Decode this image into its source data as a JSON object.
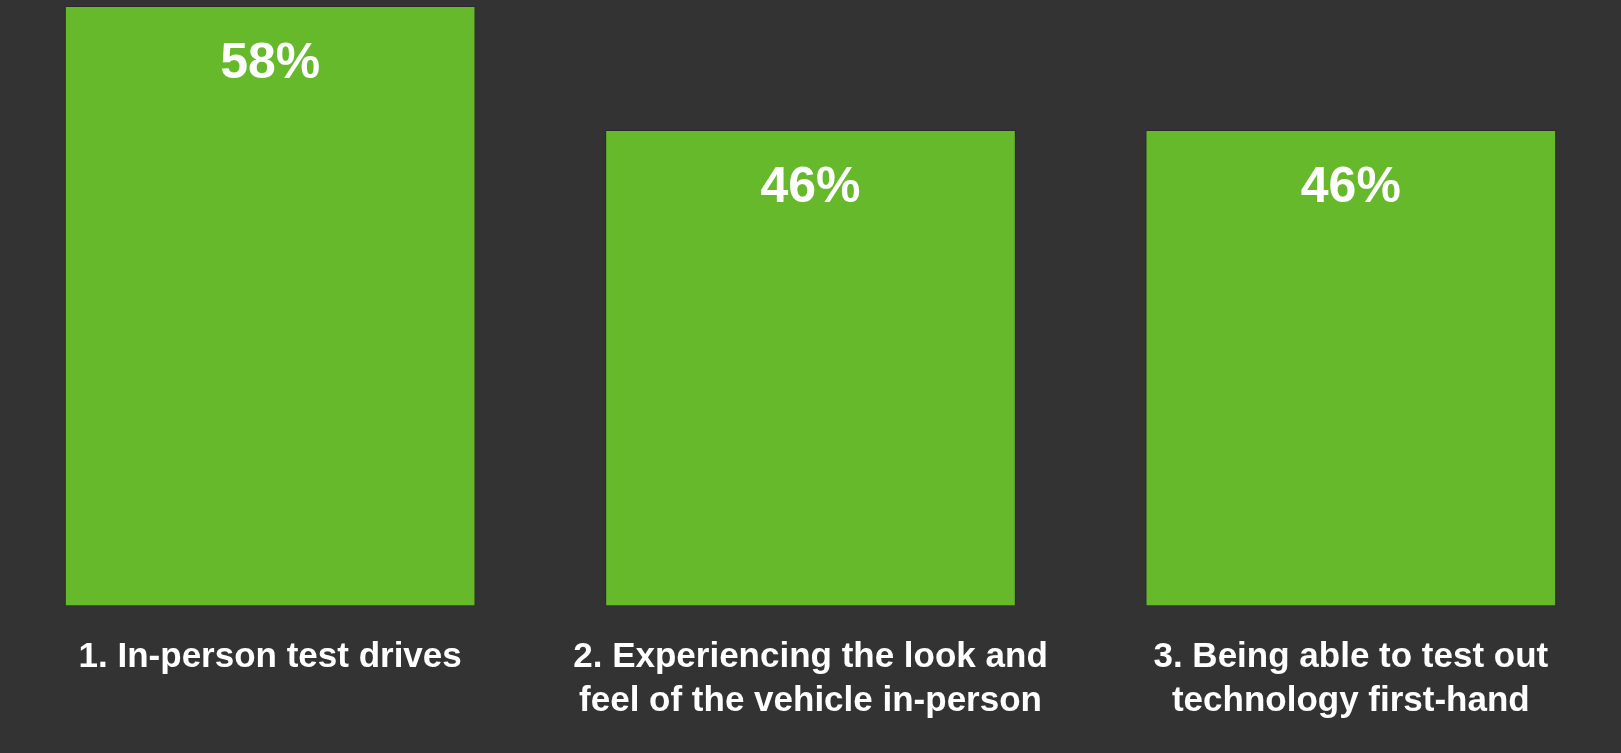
{
  "chart_data": {
    "type": "bar",
    "categories": [
      "1. In-person test drives",
      "2. Experiencing the look and feel of the vehicle in-person",
      "3. Being able to test out technology first-hand"
    ],
    "values": [
      58,
      46,
      46
    ],
    "value_labels": [
      "58%",
      "46%",
      "46%"
    ],
    "tick_labels": "x",
    "color": "#65b92b",
    "grid": false,
    "legend": false
  }
}
